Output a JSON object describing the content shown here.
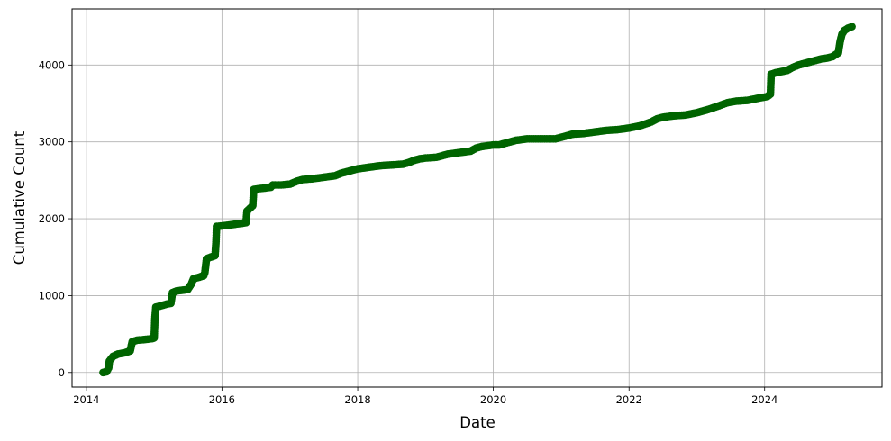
{
  "chart_data": {
    "type": "line",
    "title": "",
    "xlabel": "Date",
    "ylabel": "Cumulative Count",
    "xlim": [
      "2013-10-16",
      "2025-09-24"
    ],
    "ylim": [
      -190,
      4730
    ],
    "grid": true,
    "x_ticks": [
      "2014",
      "2016",
      "2018",
      "2020",
      "2022",
      "2024"
    ],
    "y_ticks": [
      0,
      1000,
      2000,
      3000,
      4000
    ],
    "series": [
      {
        "name": "",
        "color": "#006400",
        "marker": "circle",
        "points": [
          [
            "2014-04-01",
            0
          ],
          [
            "2014-04-20",
            10
          ],
          [
            "2014-05-01",
            60
          ],
          [
            "2014-05-05",
            150
          ],
          [
            "2014-05-25",
            210
          ],
          [
            "2014-06-20",
            240
          ],
          [
            "2014-07-25",
            255
          ],
          [
            "2014-08-25",
            280
          ],
          [
            "2014-09-05",
            400
          ],
          [
            "2014-10-01",
            420
          ],
          [
            "2014-11-15",
            430
          ],
          [
            "2014-12-20",
            440
          ],
          [
            "2015-01-01",
            450
          ],
          [
            "2015-01-05",
            700
          ],
          [
            "2015-01-10",
            850
          ],
          [
            "2015-02-10",
            870
          ],
          [
            "2015-03-10",
            890
          ],
          [
            "2015-04-01",
            900
          ],
          [
            "2015-04-10",
            1040
          ],
          [
            "2015-05-01",
            1060
          ],
          [
            "2015-06-01",
            1070
          ],
          [
            "2015-07-01",
            1080
          ],
          [
            "2015-07-20",
            1150
          ],
          [
            "2015-08-01",
            1220
          ],
          [
            "2015-09-01",
            1240
          ],
          [
            "2015-09-25",
            1260
          ],
          [
            "2015-10-01",
            1300
          ],
          [
            "2015-10-10",
            1480
          ],
          [
            "2015-11-01",
            1500
          ],
          [
            "2015-11-25",
            1520
          ],
          [
            "2015-11-30",
            1700
          ],
          [
            "2015-12-03",
            1900
          ],
          [
            "2016-01-15",
            1910
          ],
          [
            "2016-02-15",
            1920
          ],
          [
            "2016-03-15",
            1930
          ],
          [
            "2016-04-15",
            1940
          ],
          [
            "2016-05-10",
            1950
          ],
          [
            "2016-05-15",
            2100
          ],
          [
            "2016-06-15",
            2170
          ],
          [
            "2016-06-20",
            2380
          ],
          [
            "2016-07-15",
            2390
          ],
          [
            "2016-08-20",
            2400
          ],
          [
            "2016-09-20",
            2410
          ],
          [
            "2016-10-01",
            2440
          ],
          [
            "2016-11-15",
            2440
          ],
          [
            "2017-01-01",
            2450
          ],
          [
            "2017-01-20",
            2470
          ],
          [
            "2017-02-10",
            2490
          ],
          [
            "2017-03-10",
            2510
          ],
          [
            "2017-05-01",
            2520
          ],
          [
            "2017-06-01",
            2530
          ],
          [
            "2017-07-01",
            2540
          ],
          [
            "2017-08-01",
            2550
          ],
          [
            "2017-09-01",
            2560
          ],
          [
            "2017-10-01",
            2590
          ],
          [
            "2017-11-01",
            2610
          ],
          [
            "2017-12-01",
            2630
          ],
          [
            "2018-01-01",
            2650
          ],
          [
            "2018-02-01",
            2660
          ],
          [
            "2018-03-01",
            2670
          ],
          [
            "2018-04-01",
            2680
          ],
          [
            "2018-05-01",
            2690
          ],
          [
            "2018-07-01",
            2700
          ],
          [
            "2018-09-01",
            2710
          ],
          [
            "2018-10-01",
            2730
          ],
          [
            "2018-11-01",
            2760
          ],
          [
            "2018-12-01",
            2780
          ],
          [
            "2019-01-01",
            2790
          ],
          [
            "2019-03-01",
            2800
          ],
          [
            "2019-05-01",
            2840
          ],
          [
            "2019-07-01",
            2860
          ],
          [
            "2019-09-01",
            2880
          ],
          [
            "2019-10-01",
            2920
          ],
          [
            "2019-11-01",
            2940
          ],
          [
            "2020-01-01",
            2960
          ],
          [
            "2020-02-01",
            2960
          ],
          [
            "2020-03-01",
            2980
          ],
          [
            "2020-04-01",
            3000
          ],
          [
            "2020-05-01",
            3020
          ],
          [
            "2020-06-01",
            3030
          ],
          [
            "2020-07-01",
            3040
          ],
          [
            "2020-12-01",
            3040
          ],
          [
            "2021-01-01",
            3060
          ],
          [
            "2021-02-01",
            3080
          ],
          [
            "2021-03-01",
            3100
          ],
          [
            "2021-05-01",
            3110
          ],
          [
            "2021-07-01",
            3130
          ],
          [
            "2021-09-01",
            3150
          ],
          [
            "2021-11-01",
            3160
          ],
          [
            "2022-01-01",
            3180
          ],
          [
            "2022-03-01",
            3210
          ],
          [
            "2022-05-01",
            3260
          ],
          [
            "2022-06-01",
            3300
          ],
          [
            "2022-07-01",
            3320
          ],
          [
            "2022-09-01",
            3340
          ],
          [
            "2022-11-01",
            3350
          ],
          [
            "2023-01-01",
            3380
          ],
          [
            "2023-03-01",
            3420
          ],
          [
            "2023-05-01",
            3470
          ],
          [
            "2023-06-15",
            3510
          ],
          [
            "2023-08-01",
            3530
          ],
          [
            "2023-10-01",
            3540
          ],
          [
            "2023-12-01",
            3570
          ],
          [
            "2024-01-15",
            3590
          ],
          [
            "2024-02-01",
            3620
          ],
          [
            "2024-02-05",
            3880
          ],
          [
            "2024-03-01",
            3900
          ],
          [
            "2024-05-01",
            3930
          ],
          [
            "2024-06-01",
            3970
          ],
          [
            "2024-07-01",
            4000
          ],
          [
            "2024-09-01",
            4040
          ],
          [
            "2024-10-01",
            4060
          ],
          [
            "2024-11-01",
            4080
          ],
          [
            "2024-12-01",
            4090
          ],
          [
            "2025-01-01",
            4110
          ],
          [
            "2025-02-01",
            4160
          ],
          [
            "2025-02-10",
            4300
          ],
          [
            "2025-02-20",
            4400
          ],
          [
            "2025-03-05",
            4450
          ],
          [
            "2025-03-25",
            4480
          ],
          [
            "2025-04-15",
            4500
          ]
        ]
      }
    ]
  }
}
